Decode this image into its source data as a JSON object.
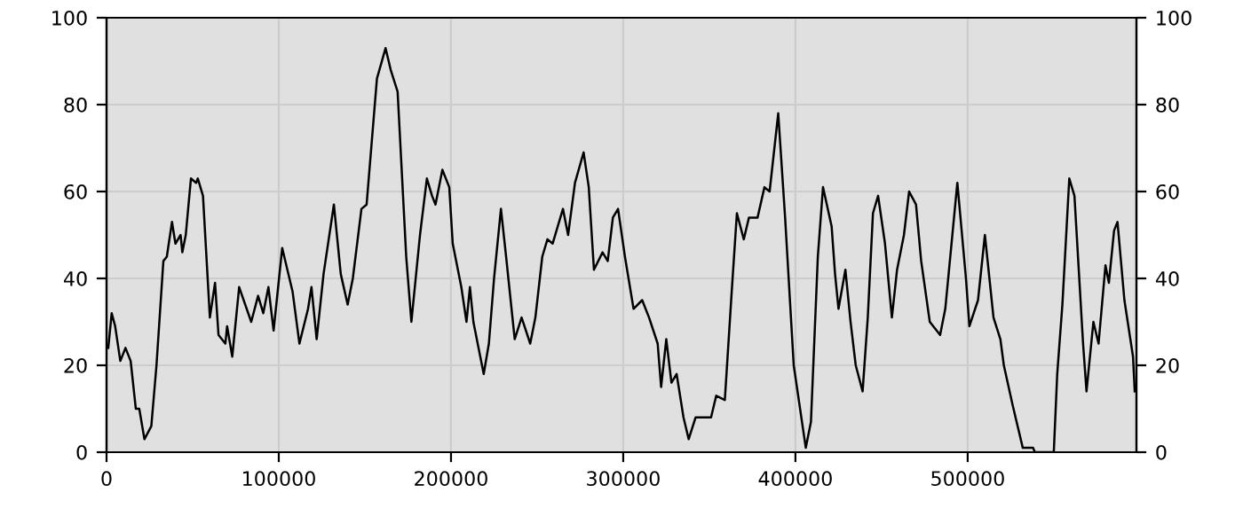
{
  "chart_data": {
    "type": "line",
    "x": [
      1000,
      3000,
      5000,
      8000,
      11000,
      14000,
      17000,
      19000,
      22000,
      26000,
      29000,
      33000,
      35000,
      38000,
      40000,
      43000,
      44000,
      46000,
      49000,
      52000,
      53000,
      56000,
      60000,
      63000,
      65000,
      69000,
      70000,
      73000,
      77000,
      84000,
      88000,
      91000,
      94000,
      97000,
      102000,
      108000,
      112000,
      117000,
      119000,
      122000,
      126000,
      132000,
      136000,
      140000,
      143000,
      148000,
      151000,
      157000,
      162000,
      165000,
      169000,
      174000,
      177000,
      182000,
      186000,
      189000,
      191000,
      195000,
      199000,
      201000,
      206000,
      209000,
      211000,
      213000,
      217000,
      219000,
      222000,
      225000,
      229000,
      232000,
      237000,
      241000,
      246000,
      249000,
      253000,
      256000,
      259000,
      265000,
      268000,
      272000,
      277000,
      280000,
      283000,
      288000,
      291000,
      294000,
      297000,
      301000,
      306000,
      311000,
      315000,
      320000,
      322000,
      325000,
      328000,
      331000,
      335000,
      338000,
      342000,
      351000,
      354000,
      359000,
      363000,
      366000,
      370000,
      373000,
      378000,
      382000,
      385000,
      390000,
      394000,
      399000,
      406000,
      409000,
      413000,
      416000,
      421000,
      423000,
      425000,
      429000,
      432000,
      435000,
      439000,
      442000,
      445000,
      448000,
      452000,
      456000,
      459000,
      463000,
      466000,
      470000,
      473000,
      478000,
      484000,
      487000,
      494000,
      499000,
      501000,
      506000,
      510000,
      515000,
      519000,
      521000,
      526000,
      532000,
      538000,
      539000,
      550000,
      552000,
      555000,
      559000,
      562000,
      567000,
      569000,
      573000,
      576000,
      580000,
      582000,
      585000,
      587000,
      591000,
      596000,
      597000
    ],
    "series": [
      {
        "color": "#000000",
        "values": [
          24,
          32,
          29,
          21,
          24,
          21,
          10,
          10,
          3,
          6,
          20,
          44,
          45,
          53,
          48,
          50,
          46,
          50,
          63,
          62,
          63,
          59,
          31,
          39,
          27,
          25,
          29,
          22,
          38,
          30,
          36,
          32,
          38,
          28,
          47,
          37,
          25,
          33,
          38,
          26,
          41,
          57,
          41,
          34,
          40,
          56,
          57,
          86,
          93,
          88,
          83,
          45,
          30,
          50,
          63,
          59,
          57,
          65,
          61,
          48,
          38,
          30,
          38,
          30,
          22,
          18,
          25,
          40,
          56,
          45,
          26,
          31,
          25,
          31,
          45,
          49,
          48,
          56,
          50,
          62,
          69,
          61,
          42,
          46,
          44,
          54,
          56,
          45,
          33,
          35,
          31,
          25,
          15,
          26,
          16,
          18,
          8,
          3,
          8,
          8,
          13,
          12,
          37,
          55,
          49,
          54,
          54,
          61,
          60,
          78,
          54,
          20,
          1,
          7,
          45,
          61,
          52,
          41,
          33,
          42,
          30,
          20,
          14,
          31,
          55,
          59,
          48,
          31,
          42,
          50,
          60,
          57,
          44,
          30,
          27,
          33,
          62,
          40,
          29,
          35,
          50,
          31,
          26,
          20,
          11,
          1,
          1,
          0,
          0,
          18,
          34,
          63,
          59,
          25,
          14,
          30,
          25,
          43,
          39,
          51,
          53,
          35,
          22,
          14
        ]
      }
    ],
    "xlim": [
      0,
      598000
    ],
    "ylim": [
      0,
      100
    ],
    "xticks": [
      0,
      100000,
      200000,
      300000,
      400000,
      500000
    ],
    "yticks": [
      0,
      20,
      40,
      60,
      80,
      100
    ],
    "y2lim": [
      0,
      100
    ],
    "y2ticks": [
      0,
      20,
      40,
      60,
      80,
      100
    ],
    "grid": true,
    "marker": "none",
    "line_style": "solid"
  }
}
